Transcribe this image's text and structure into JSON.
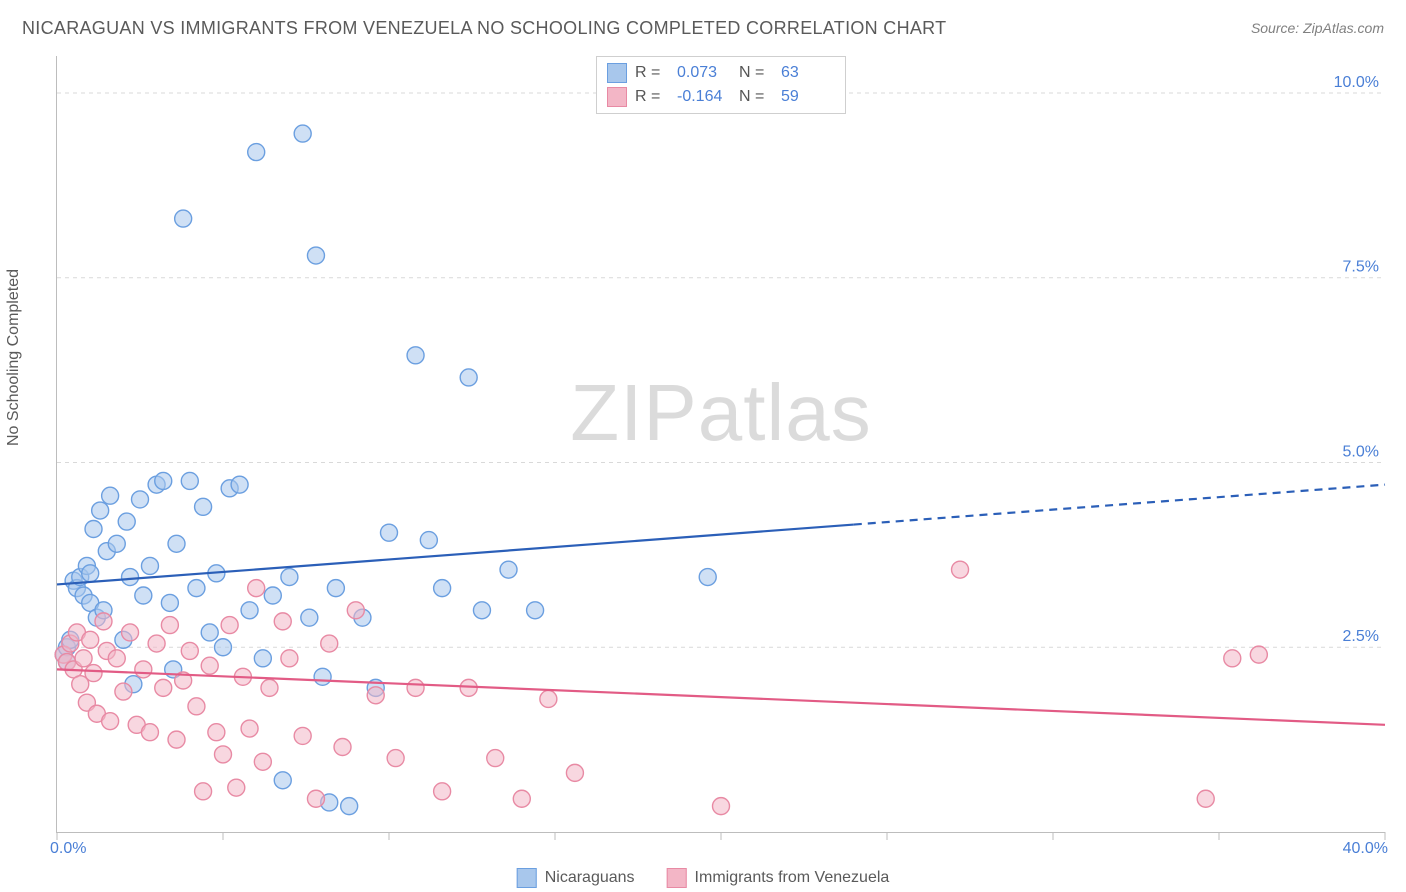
{
  "title": "NICARAGUAN VS IMMIGRANTS FROM VENEZUELA NO SCHOOLING COMPLETED CORRELATION CHART",
  "source": "Source: ZipAtlas.com",
  "ylabel": "No Schooling Completed",
  "watermark_a": "ZIP",
  "watermark_b": "atlas",
  "chart": {
    "type": "scatter",
    "xlim": [
      0,
      40
    ],
    "ylim": [
      0,
      10.5
    ],
    "x_tick_positions": [
      0,
      5,
      10,
      15,
      20,
      25,
      30,
      35,
      40
    ],
    "x_tick_labels_shown": {
      "0": "0.0%",
      "40": "40.0%"
    },
    "y_gridlines": [
      2.5,
      5.0,
      7.5,
      10.0
    ],
    "y_tick_labels": {
      "2.5": "2.5%",
      "5.0": "5.0%",
      "7.5": "7.5%",
      "10.0": "10.0%"
    },
    "background_color": "#ffffff",
    "grid_color": "#d9d9d9",
    "axis_color": "#bdbdbd",
    "axis_label_color": "#4a7fd6",
    "marker_radius": 8.5,
    "marker_stroke_width": 1.4
  },
  "series": [
    {
      "name": "Nicaraguans",
      "fill": "#a8c7ec",
      "stroke": "#6b9fe0",
      "fill_opacity": 0.55,
      "trend": {
        "color": "#2b5fb8",
        "width": 2.2,
        "y_at_x0": 3.35,
        "y_at_x40": 4.7,
        "solid_until_x": 24
      },
      "R": "0.073",
      "N": "63",
      "points": [
        [
          0.2,
          2.4
        ],
        [
          0.3,
          2.5
        ],
        [
          0.3,
          2.3
        ],
        [
          0.4,
          2.6
        ],
        [
          0.5,
          3.4
        ],
        [
          0.6,
          3.3
        ],
        [
          0.7,
          3.45
        ],
        [
          0.8,
          3.2
        ],
        [
          0.9,
          3.6
        ],
        [
          1.0,
          3.1
        ],
        [
          1.0,
          3.5
        ],
        [
          1.1,
          4.1
        ],
        [
          1.2,
          2.9
        ],
        [
          1.3,
          4.35
        ],
        [
          1.4,
          3.0
        ],
        [
          1.5,
          3.8
        ],
        [
          1.6,
          4.55
        ],
        [
          1.8,
          3.9
        ],
        [
          2.0,
          2.6
        ],
        [
          2.1,
          4.2
        ],
        [
          2.2,
          3.45
        ],
        [
          2.3,
          2.0
        ],
        [
          2.5,
          4.5
        ],
        [
          2.6,
          3.2
        ],
        [
          2.8,
          3.6
        ],
        [
          3.0,
          4.7
        ],
        [
          3.2,
          4.75
        ],
        [
          3.4,
          3.1
        ],
        [
          3.5,
          2.2
        ],
        [
          3.6,
          3.9
        ],
        [
          3.8,
          8.3
        ],
        [
          4.0,
          4.75
        ],
        [
          4.2,
          3.3
        ],
        [
          4.4,
          4.4
        ],
        [
          4.6,
          2.7
        ],
        [
          4.8,
          3.5
        ],
        [
          5.0,
          2.5
        ],
        [
          5.2,
          4.65
        ],
        [
          5.5,
          4.7
        ],
        [
          5.8,
          3.0
        ],
        [
          6.0,
          9.2
        ],
        [
          6.2,
          2.35
        ],
        [
          6.5,
          3.2
        ],
        [
          6.8,
          0.7
        ],
        [
          7.0,
          3.45
        ],
        [
          7.4,
          9.45
        ],
        [
          7.6,
          2.9
        ],
        [
          7.8,
          7.8
        ],
        [
          8.0,
          2.1
        ],
        [
          8.2,
          0.4
        ],
        [
          8.4,
          3.3
        ],
        [
          8.8,
          0.35
        ],
        [
          9.2,
          2.9
        ],
        [
          9.6,
          1.95
        ],
        [
          10.0,
          4.05
        ],
        [
          10.8,
          6.45
        ],
        [
          11.2,
          3.95
        ],
        [
          11.6,
          3.3
        ],
        [
          12.4,
          6.15
        ],
        [
          12.8,
          3.0
        ],
        [
          13.6,
          3.55
        ],
        [
          14.4,
          3.0
        ],
        [
          19.6,
          3.45
        ]
      ]
    },
    {
      "name": "Immigrants from Venezuela",
      "fill": "#f3b6c6",
      "stroke": "#e88aa4",
      "fill_opacity": 0.55,
      "trend": {
        "color": "#e25b85",
        "width": 2.2,
        "y_at_x0": 2.2,
        "y_at_x40": 1.45,
        "solid_until_x": 40
      },
      "R": "-0.164",
      "N": "59",
      "points": [
        [
          0.2,
          2.4
        ],
        [
          0.3,
          2.3
        ],
        [
          0.4,
          2.55
        ],
        [
          0.5,
          2.2
        ],
        [
          0.6,
          2.7
        ],
        [
          0.7,
          2.0
        ],
        [
          0.8,
          2.35
        ],
        [
          0.9,
          1.75
        ],
        [
          1.0,
          2.6
        ],
        [
          1.1,
          2.15
        ],
        [
          1.2,
          1.6
        ],
        [
          1.4,
          2.85
        ],
        [
          1.5,
          2.45
        ],
        [
          1.6,
          1.5
        ],
        [
          1.8,
          2.35
        ],
        [
          2.0,
          1.9
        ],
        [
          2.2,
          2.7
        ],
        [
          2.4,
          1.45
        ],
        [
          2.6,
          2.2
        ],
        [
          2.8,
          1.35
        ],
        [
          3.0,
          2.55
        ],
        [
          3.2,
          1.95
        ],
        [
          3.4,
          2.8
        ],
        [
          3.6,
          1.25
        ],
        [
          3.8,
          2.05
        ],
        [
          4.0,
          2.45
        ],
        [
          4.2,
          1.7
        ],
        [
          4.4,
          0.55
        ],
        [
          4.6,
          2.25
        ],
        [
          4.8,
          1.35
        ],
        [
          5.0,
          1.05
        ],
        [
          5.2,
          2.8
        ],
        [
          5.4,
          0.6
        ],
        [
          5.6,
          2.1
        ],
        [
          5.8,
          1.4
        ],
        [
          6.0,
          3.3
        ],
        [
          6.2,
          0.95
        ],
        [
          6.4,
          1.95
        ],
        [
          6.8,
          2.85
        ],
        [
          7.0,
          2.35
        ],
        [
          7.4,
          1.3
        ],
        [
          7.8,
          0.45
        ],
        [
          8.2,
          2.55
        ],
        [
          8.6,
          1.15
        ],
        [
          9.0,
          3.0
        ],
        [
          9.6,
          1.85
        ],
        [
          10.2,
          1.0
        ],
        [
          10.8,
          1.95
        ],
        [
          11.6,
          0.55
        ],
        [
          12.4,
          1.95
        ],
        [
          13.2,
          1.0
        ],
        [
          14.0,
          0.45
        ],
        [
          14.8,
          1.8
        ],
        [
          15.6,
          0.8
        ],
        [
          20.0,
          0.35
        ],
        [
          27.2,
          3.55
        ],
        [
          34.6,
          0.45
        ],
        [
          35.4,
          2.35
        ],
        [
          36.2,
          2.4
        ]
      ]
    }
  ],
  "legend_top_labels": {
    "R": "R  =",
    "N": "N  ="
  },
  "colors": {
    "title": "#5a5a5a",
    "source": "#808080",
    "swatch_blue_fill": "#a8c7ec",
    "swatch_blue_stroke": "#6b9fe0",
    "swatch_pink_fill": "#f3b6c6",
    "swatch_pink_stroke": "#e88aa4"
  }
}
